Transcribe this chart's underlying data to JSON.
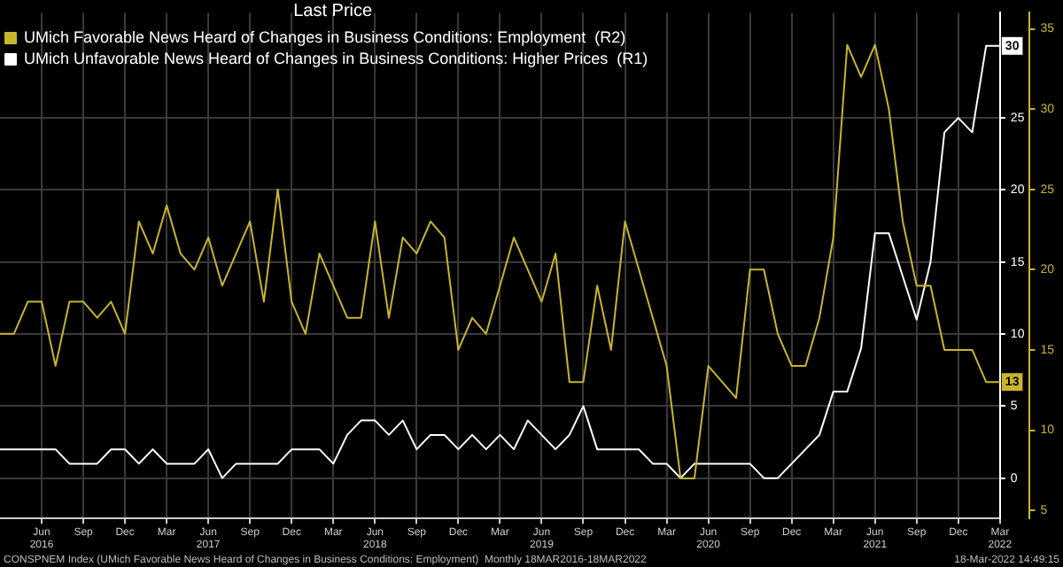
{
  "chart_data": {
    "type": "line",
    "legend_title": "Last Price",
    "legend": "top left",
    "grid": true,
    "marker": "none",
    "line_style": "solid",
    "x": [
      "2016-03",
      "2016-04",
      "2016-05",
      "2016-06",
      "2016-07",
      "2016-08",
      "2016-09",
      "2016-10",
      "2016-11",
      "2016-12",
      "2017-01",
      "2017-02",
      "2017-03",
      "2017-04",
      "2017-05",
      "2017-06",
      "2017-07",
      "2017-08",
      "2017-09",
      "2017-10",
      "2017-11",
      "2017-12",
      "2018-01",
      "2018-02",
      "2018-03",
      "2018-04",
      "2018-05",
      "2018-06",
      "2018-07",
      "2018-08",
      "2018-09",
      "2018-10",
      "2018-11",
      "2018-12",
      "2019-01",
      "2019-02",
      "2019-03",
      "2019-04",
      "2019-05",
      "2019-06",
      "2019-07",
      "2019-08",
      "2019-09",
      "2019-10",
      "2019-11",
      "2019-12",
      "2020-01",
      "2020-02",
      "2020-03",
      "2020-04",
      "2020-05",
      "2020-06",
      "2020-07",
      "2020-08",
      "2020-09",
      "2020-10",
      "2020-11",
      "2020-12",
      "2021-01",
      "2021-02",
      "2021-03",
      "2021-04",
      "2021-05",
      "2021-06",
      "2021-07",
      "2021-08",
      "2021-09",
      "2021-10",
      "2021-11",
      "2021-12",
      "2022-01",
      "2022-02",
      "2022-03"
    ],
    "xlim": [
      "2016-03",
      "2022-03"
    ],
    "xticks": [
      {
        "value": "2016-06",
        "label": "Jun\n2016"
      },
      {
        "value": "2016-09",
        "label": "Sep"
      },
      {
        "value": "2016-12",
        "label": "Dec"
      },
      {
        "value": "2017-03",
        "label": "Mar"
      },
      {
        "value": "2017-06",
        "label": "Jun\n2017"
      },
      {
        "value": "2017-09",
        "label": "Sep"
      },
      {
        "value": "2017-12",
        "label": "Dec"
      },
      {
        "value": "2018-03",
        "label": "Mar"
      },
      {
        "value": "2018-06",
        "label": "Jun\n2018"
      },
      {
        "value": "2018-09",
        "label": "Sep"
      },
      {
        "value": "2018-12",
        "label": "Dec"
      },
      {
        "value": "2019-03",
        "label": "Mar"
      },
      {
        "value": "2019-06",
        "label": "Jun\n2019"
      },
      {
        "value": "2019-09",
        "label": "Sep"
      },
      {
        "value": "2019-12",
        "label": "Dec"
      },
      {
        "value": "2020-03",
        "label": "Mar"
      },
      {
        "value": "2020-06",
        "label": "Jun\n2020"
      },
      {
        "value": "2020-09",
        "label": "Sep"
      },
      {
        "value": "2020-12",
        "label": "Dec"
      },
      {
        "value": "2021-03",
        "label": "Mar"
      },
      {
        "value": "2021-06",
        "label": "Jun\n2021"
      },
      {
        "value": "2021-09",
        "label": "Sep"
      },
      {
        "value": "2021-12",
        "label": "Dec"
      },
      {
        "value": "2022-03",
        "label": "Mar\n2022"
      }
    ],
    "ylim": [
      -2.8,
      32.3
    ],
    "yticks": [
      0,
      5,
      10,
      15,
      20,
      25
    ],
    "y2lim": [
      4.5,
      36
    ],
    "y2ticks": [
      5,
      10,
      15,
      20,
      25,
      30,
      35
    ],
    "series": [
      {
        "name": "UMich Favorable News Heard of Changes in Business Conditions: Employment  (R2)",
        "color": "#c9b52c",
        "axis": "y2",
        "values": [
          16,
          16,
          18,
          18,
          14,
          18,
          18,
          17,
          18,
          16,
          23,
          21,
          24,
          21,
          20,
          22,
          19,
          21,
          23,
          18,
          25,
          18,
          16,
          21,
          19,
          17,
          17,
          23,
          17,
          22,
          21,
          23,
          22,
          15,
          17,
          16,
          19,
          22,
          20,
          18,
          21,
          13,
          13,
          19,
          15,
          23,
          20,
          17,
          14,
          7,
          7,
          14,
          13,
          12,
          20,
          20,
          16,
          14,
          14,
          17,
          22,
          34,
          32,
          34,
          30,
          23,
          19,
          19,
          15,
          15,
          15,
          13,
          13
        ],
        "value_labels": [
          null,
          null,
          null,
          null,
          null,
          null,
          null,
          null,
          null,
          null,
          null,
          null,
          null,
          null,
          null,
          null,
          null,
          null,
          null,
          null,
          null,
          null,
          null,
          null,
          null,
          null,
          null,
          null,
          null,
          null,
          null,
          null,
          null,
          null,
          null,
          null,
          null,
          null,
          null,
          null,
          null,
          null,
          null,
          null,
          null,
          null,
          null,
          null,
          null,
          null,
          null,
          null,
          null,
          null,
          null,
          null,
          null,
          null,
          null,
          null,
          null,
          null,
          null,
          null,
          null,
          null,
          null,
          null,
          null,
          null,
          null,
          null,
          "13"
        ]
      },
      {
        "name": "UMich Unfavorable News Heard of Changes in Business Conditions: Higher Prices  (R1)",
        "color": "#ffffff",
        "axis": "y",
        "values": [
          2,
          2,
          2,
          2,
          2,
          1,
          1,
          1,
          2,
          2,
          1,
          2,
          1,
          1,
          1,
          2,
          0,
          1,
          1,
          1,
          1,
          2,
          2,
          2,
          1,
          3,
          4,
          4,
          3,
          4,
          2,
          3,
          3,
          2,
          3,
          2,
          3,
          2,
          4,
          3,
          2,
          3,
          5,
          2,
          2,
          2,
          2,
          1,
          1,
          0,
          1,
          1,
          1,
          1,
          1,
          0,
          0,
          1,
          2,
          3,
          6,
          6,
          9,
          17,
          17,
          14,
          11,
          15,
          24,
          25,
          24,
          30,
          30
        ],
        "value_labels": [
          null,
          null,
          null,
          null,
          null,
          null,
          null,
          null,
          null,
          null,
          null,
          null,
          null,
          null,
          null,
          null,
          null,
          null,
          null,
          null,
          null,
          null,
          null,
          null,
          null,
          null,
          null,
          null,
          null,
          null,
          null,
          null,
          null,
          null,
          null,
          null,
          null,
          null,
          null,
          null,
          null,
          null,
          null,
          null,
          null,
          null,
          null,
          null,
          null,
          null,
          null,
          null,
          null,
          null,
          null,
          null,
          null,
          null,
          null,
          null,
          null,
          null,
          null,
          null,
          null,
          null,
          null,
          null,
          null,
          null,
          null,
          null,
          "30"
        ]
      }
    ],
    "annotations": [
      "CONSPNEM Index (UMich Favorable News Heard of Changes in Business Conditions: Employment)  Monthly 18MAR2016-18MAR2022",
      "18-Mar-2022 14:49:15"
    ]
  }
}
